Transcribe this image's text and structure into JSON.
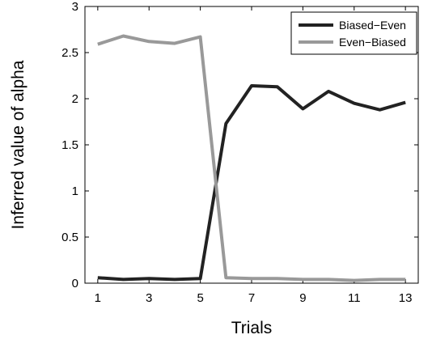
{
  "chart_data": {
    "type": "line",
    "xlabel": "Trials",
    "ylabel": "Inferred value of alpha",
    "xlim": [
      0.5,
      13.5
    ],
    "ylim": [
      0,
      3
    ],
    "xticks": [
      1,
      3,
      5,
      7,
      9,
      11,
      13
    ],
    "yticks": [
      0,
      0.5,
      1,
      1.5,
      2,
      2.5,
      3
    ],
    "ytick_labels": [
      "0",
      "0.5",
      "1",
      "1.5",
      "2",
      "2.5",
      "3"
    ],
    "x": [
      1,
      2,
      3,
      4,
      5,
      6,
      7,
      8,
      9,
      10,
      11,
      12,
      13
    ],
    "grid": false,
    "legend_position": "top-right",
    "series": [
      {
        "name": "Biased−Even",
        "color": "#222222",
        "values": [
          0.06,
          0.04,
          0.05,
          0.04,
          0.05,
          1.73,
          2.14,
          2.13,
          1.89,
          2.08,
          1.95,
          1.88,
          1.96
        ]
      },
      {
        "name": "Even−Biased",
        "color": "#999999",
        "values": [
          2.59,
          2.68,
          2.62,
          2.6,
          2.67,
          0.06,
          0.05,
          0.05,
          0.04,
          0.04,
          0.03,
          0.04,
          0.04
        ]
      }
    ]
  }
}
